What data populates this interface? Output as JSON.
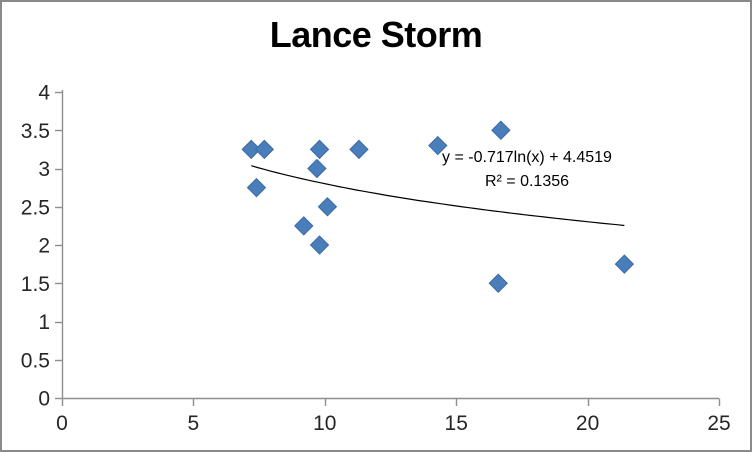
{
  "window": {
    "background": "#ffffff",
    "border_color": "#898989"
  },
  "chart_data": {
    "type": "scatter",
    "title": "Lance Storm",
    "grid": false,
    "legend": "none",
    "xlim": [
      0,
      25
    ],
    "ylim": [
      0,
      4
    ],
    "x_ticks": [
      0,
      5,
      10,
      15,
      20,
      25
    ],
    "y_ticks": [
      0,
      0.5,
      1,
      1.5,
      2,
      2.5,
      3,
      3.5,
      4
    ],
    "points": [
      {
        "x": 7.2,
        "y": 3.25
      },
      {
        "x": 7.7,
        "y": 3.25
      },
      {
        "x": 7.4,
        "y": 2.75
      },
      {
        "x": 9.2,
        "y": 2.25
      },
      {
        "x": 9.7,
        "y": 3.0
      },
      {
        "x": 9.8,
        "y": 3.25
      },
      {
        "x": 9.8,
        "y": 2.0
      },
      {
        "x": 10.1,
        "y": 2.5
      },
      {
        "x": 11.3,
        "y": 3.25
      },
      {
        "x": 14.3,
        "y": 3.3
      },
      {
        "x": 16.6,
        "y": 1.5
      },
      {
        "x": 16.7,
        "y": 3.5
      },
      {
        "x": 21.4,
        "y": 1.75
      }
    ],
    "marker": {
      "shape": "diamond",
      "fill": "#4a7ebb",
      "stroke": "#3c6aa5",
      "half_diagonal": 9
    },
    "trendline": {
      "type": "logarithmic",
      "a": -0.717,
      "b": 4.4519,
      "x_start": 7.2,
      "x_end": 21.4,
      "color": "#000000",
      "equation_label": "y = -0.717ln(x) + 4.4519",
      "r2_label": "R² = 0.1356"
    },
    "axis": {
      "line_color": "#8e8e8e",
      "label_color": "#262626"
    },
    "title_color": "#000000"
  }
}
